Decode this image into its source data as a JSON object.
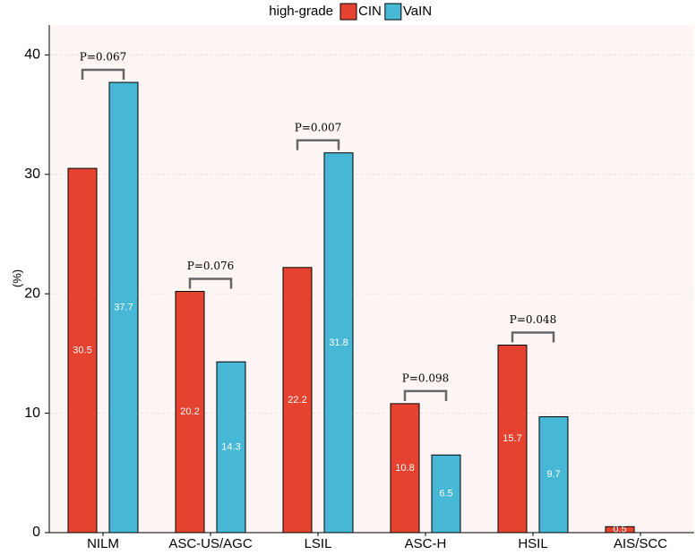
{
  "chart_data": {
    "type": "bar",
    "legend_title": "high-grade",
    "y_label": "(%)",
    "categories": [
      "NILM",
      "ASC-US/AGC",
      "LSIL",
      "ASC-H",
      "HSIL",
      "AIS/SCC"
    ],
    "series": [
      {
        "name": "CIN",
        "color": "#e5432f",
        "values": [
          30.5,
          20.2,
          22.2,
          10.8,
          15.7,
          0.5
        ]
      },
      {
        "name": "VaIN",
        "color": "#46b8d5",
        "values": [
          37.7,
          14.3,
          31.8,
          6.5,
          9.7,
          null
        ]
      }
    ],
    "annotations": [
      "P=0.067",
      "P=0.076",
      "P=0.007",
      "P=0.098",
      "P=0.048",
      null
    ],
    "ylim": [
      0,
      42.5
    ],
    "yticks": [
      0,
      10,
      20,
      30,
      40
    ],
    "grid": true,
    "legend": "top"
  }
}
